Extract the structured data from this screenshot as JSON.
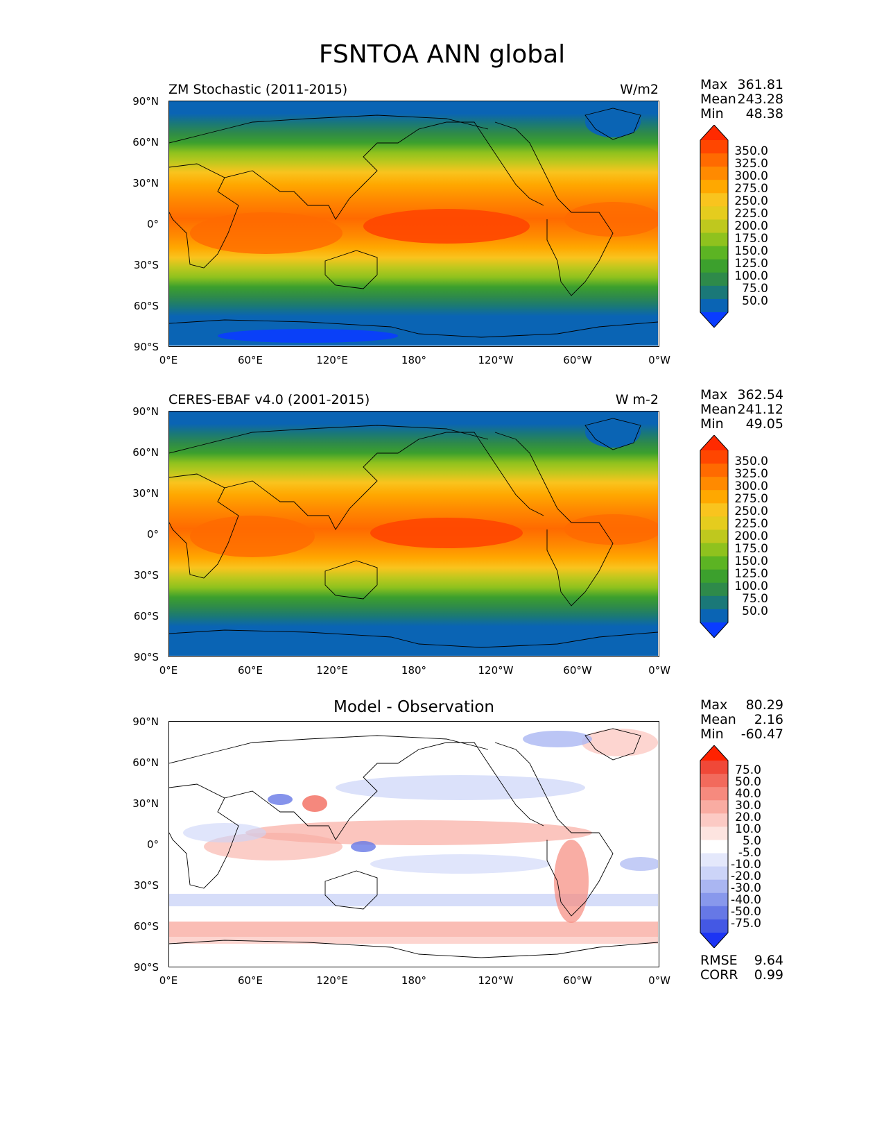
{
  "figure": {
    "title": "FSNTOA ANN global"
  },
  "stat_labels": {
    "max": "Max",
    "mean": "Mean",
    "min": "Min",
    "rmse": "RMSE",
    "corr": "CORR"
  },
  "axes": {
    "lat_labels": [
      "90°N",
      "60°N",
      "30°N",
      "0°",
      "30°S",
      "60°S",
      "90°S"
    ],
    "lon_labels": [
      "0°E",
      "60°E",
      "120°E",
      "180°",
      "120°W",
      "60°W",
      "0°W"
    ]
  },
  "colorbars": {
    "absolute": {
      "labels": [
        "350.0",
        "325.0",
        "300.0",
        "275.0",
        "250.0",
        "225.0",
        "200.0",
        "175.0",
        "150.0",
        "125.0",
        "100.0",
        "75.0",
        "50.0"
      ],
      "colors": [
        "#ff2a00",
        "#ff4600",
        "#ff6a00",
        "#ff8a00",
        "#ffa800",
        "#f9c41e",
        "#e5cc1e",
        "#bfc81e",
        "#8fc21e",
        "#5cb423",
        "#3ca02d",
        "#2e8a4a",
        "#1a7878",
        "#0a64b4",
        "#0a3cff"
      ]
    },
    "difference": {
      "labels": [
        "75.0",
        "50.0",
        "40.0",
        "30.0",
        "20.0",
        "10.0",
        "5.0",
        "-5.0",
        "-10.0",
        "-20.0",
        "-30.0",
        "-40.0",
        "-50.0",
        "-75.0"
      ],
      "colors": [
        "#ff2200",
        "#f04838",
        "#f26a5c",
        "#f68a7e",
        "#f9aca2",
        "#fccac4",
        "#fde4e0",
        "#ffffff",
        "#e4e8fb",
        "#ccd4f8",
        "#aab6f2",
        "#8898ec",
        "#6678e6",
        "#4458e4",
        "#1c34f4"
      ]
    }
  },
  "panels": [
    {
      "id": "test",
      "title": "ZM Stochastic (2011-2015)",
      "units": "W/m2",
      "stats": {
        "max": "361.81",
        "mean": "243.28",
        "min": "48.38"
      },
      "map_field": "absolute"
    },
    {
      "id": "reference",
      "title": "CERES-EBAF v4.0 (2001-2015)",
      "units": "W m-2",
      "stats": {
        "max": "362.54",
        "mean": "241.12",
        "min": "49.05"
      },
      "map_field": "absolute"
    },
    {
      "id": "difference",
      "title": "Model - Observation",
      "units": "",
      "stats": {
        "max": "80.29",
        "mean": "2.16",
        "min": "-60.47"
      },
      "metrics": {
        "rmse": "9.64",
        "corr": "0.99"
      },
      "map_field": "difference"
    }
  ]
}
